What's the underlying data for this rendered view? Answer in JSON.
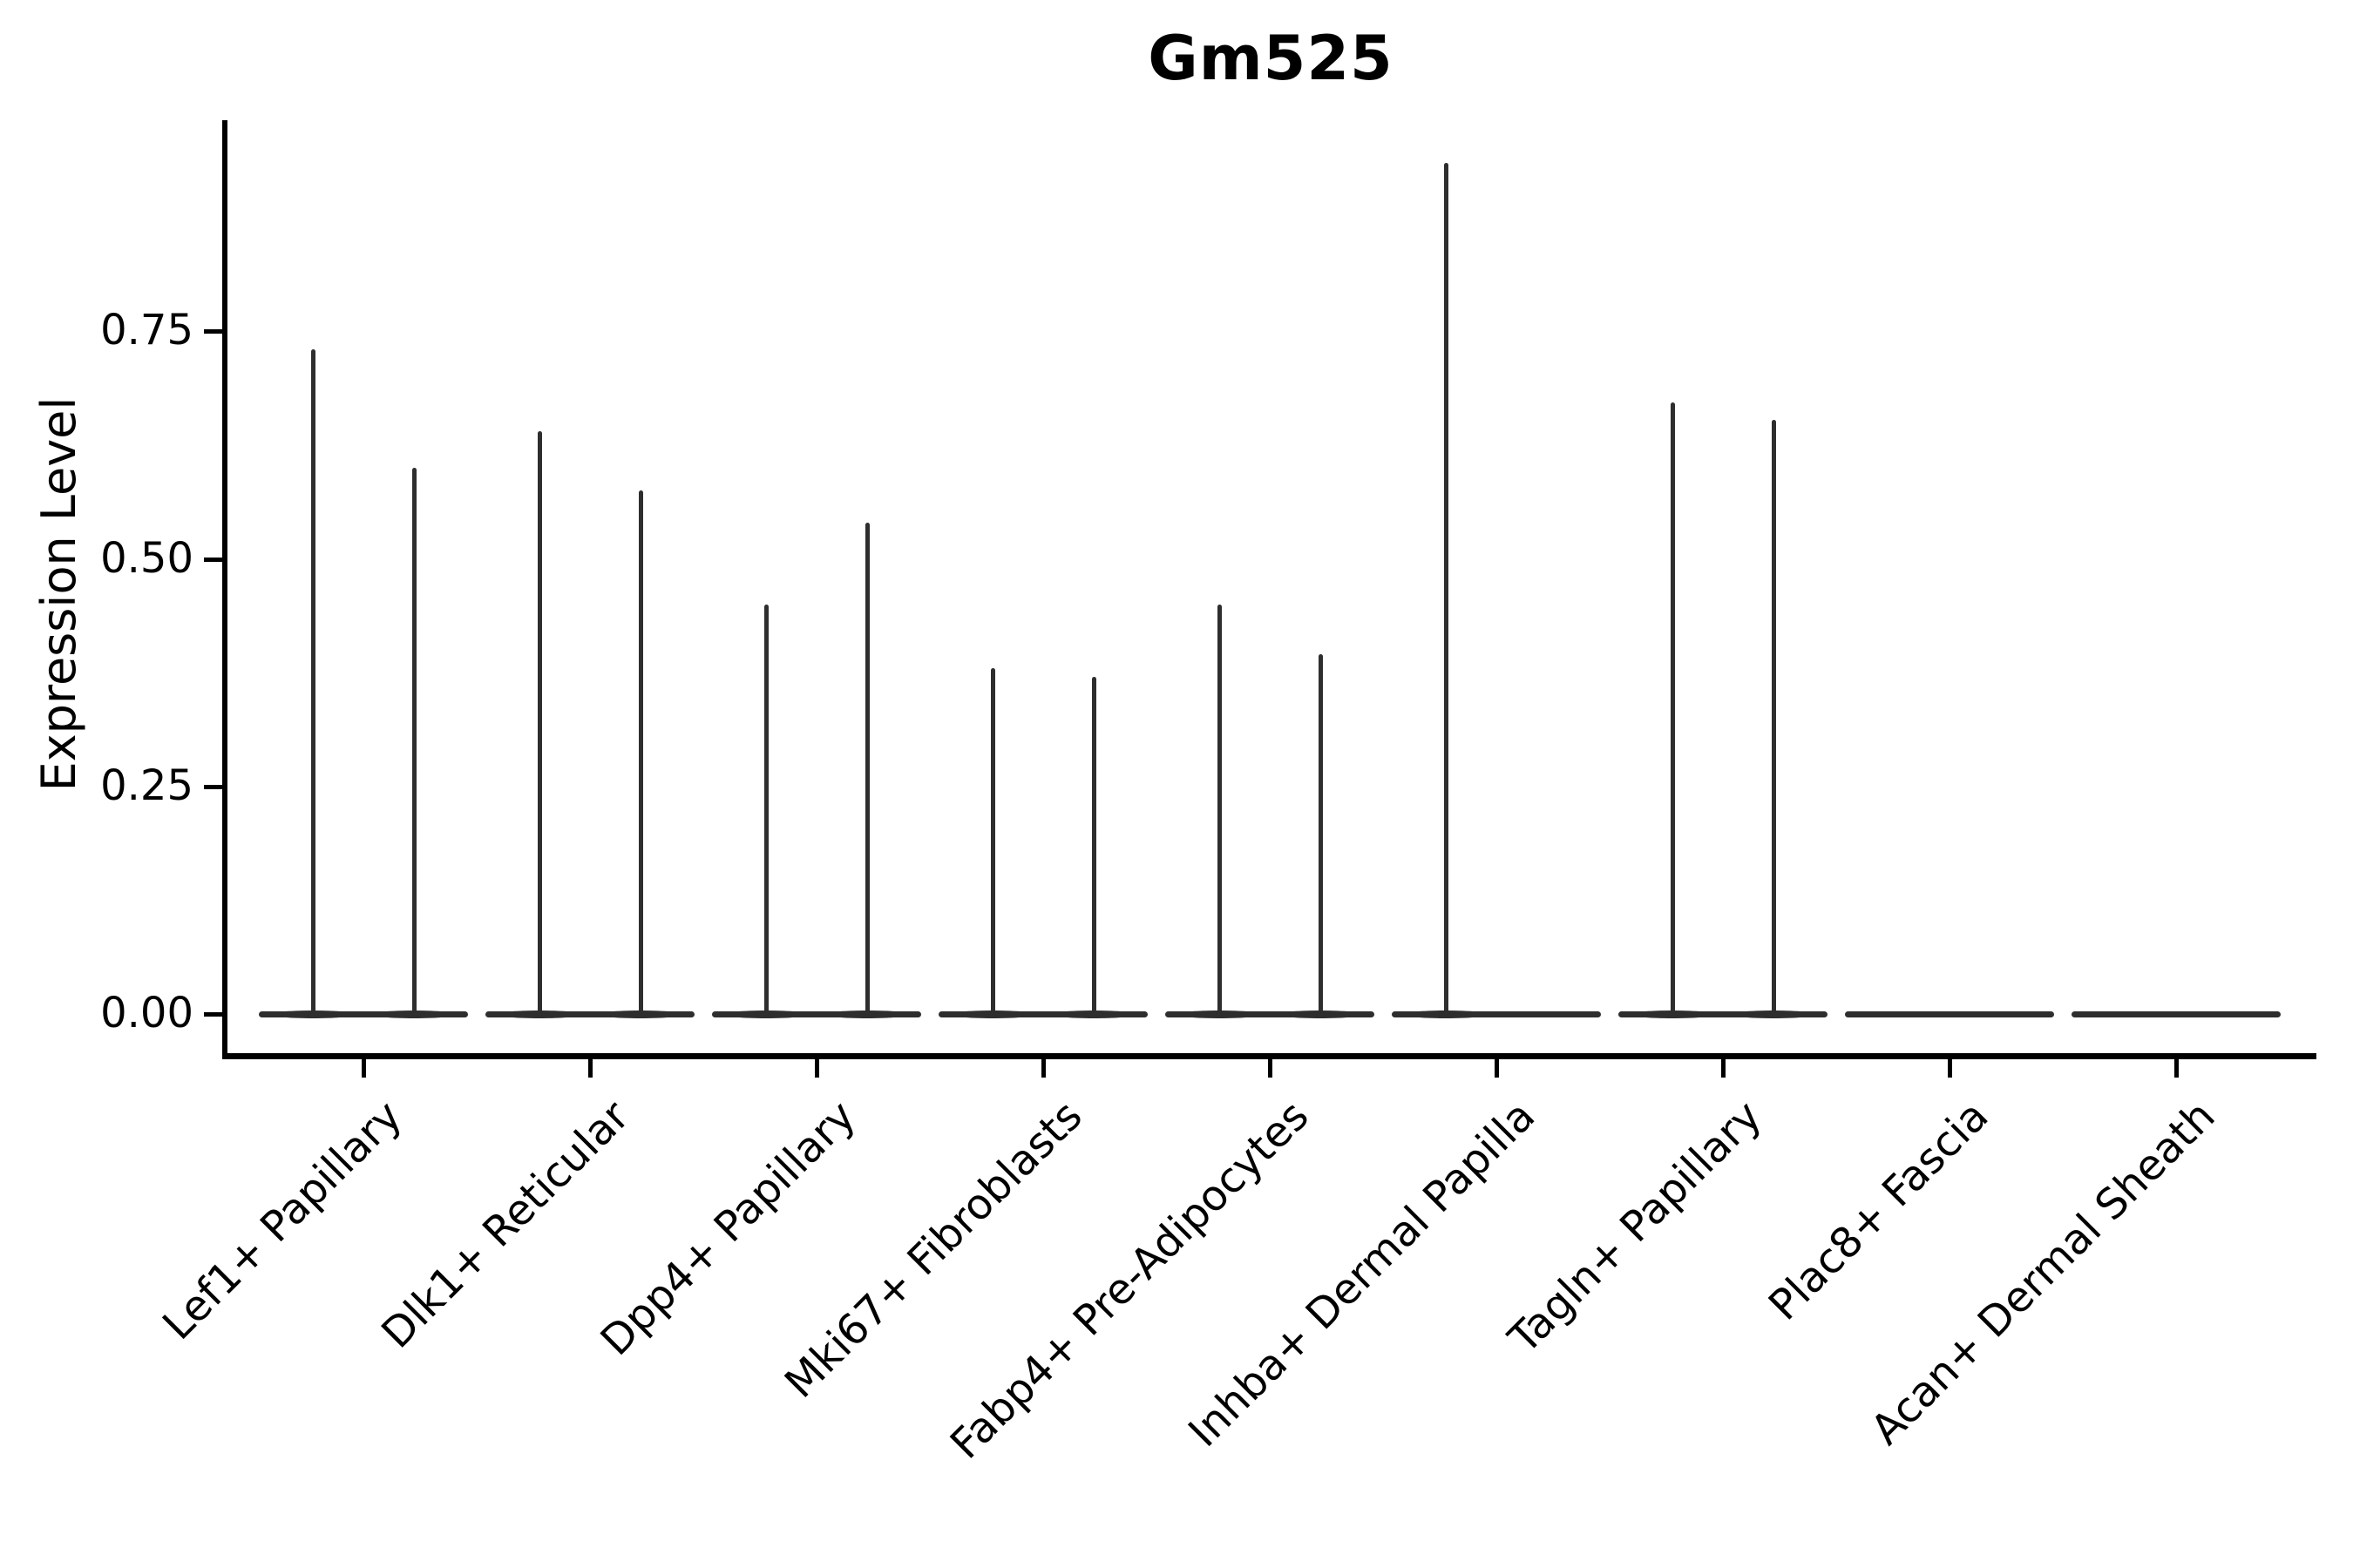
{
  "title": "Gm525",
  "axes": {
    "ylabel": "Expression Level",
    "yticks": [
      {
        "label": "0.00",
        "value": 0.0
      },
      {
        "label": "0.25",
        "value": 0.25
      },
      {
        "label": "0.50",
        "value": 0.5
      },
      {
        "label": "0.75",
        "value": 0.75
      }
    ]
  },
  "chart_data": {
    "type": "violin",
    "title": "Gm525",
    "xlabel": "",
    "ylabel": "Expression Level",
    "ylim": [
      -0.05,
      1.0
    ],
    "grid": false,
    "legend_position": "none",
    "line_color": "#2e2e2e",
    "violins_per_category": 2,
    "note": "Needle-thin violins flattened at 0; each category holds two adjacent violins whose max expression is the spike height; spikeless violins are all-zero.",
    "categories": [
      "Lef1+ Papillary",
      "Dlk1+ Reticular",
      "Dpp4+ Papillary",
      "Mki67+ Fibroblasts",
      "Fabp4+ Pre-Adipocytes",
      "Inhba+ Dermal Papilla",
      "Tagln+ Papillary",
      "Plac8+ Fascia",
      "Acan+ Dermal Sheath"
    ],
    "series": [
      {
        "name": "violin-1-max",
        "values": [
          0.73,
          0.64,
          0.45,
          0.38,
          0.45,
          0.935,
          0.672,
          0.0,
          0.0
        ]
      },
      {
        "name": "violin-2-max",
        "values": [
          0.6,
          0.575,
          0.54,
          0.37,
          0.395,
          0.0,
          0.653,
          0.0,
          0.0
        ]
      }
    ]
  }
}
